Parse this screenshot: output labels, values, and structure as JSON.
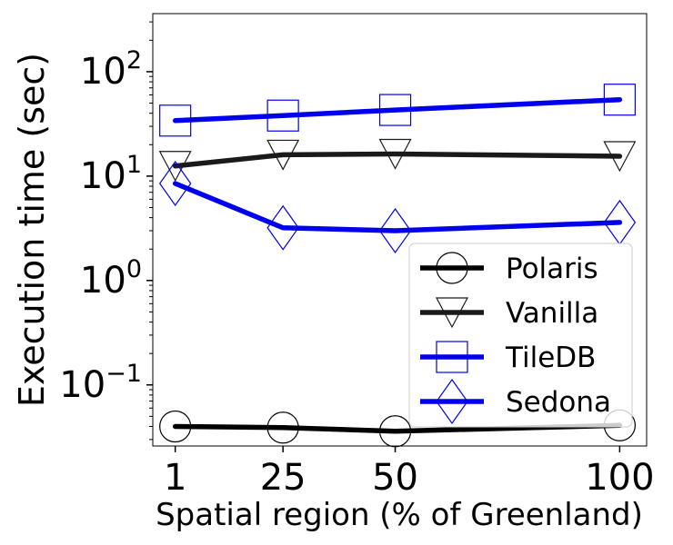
{
  "chart_data": {
    "type": "line",
    "xlabel": "Spatial region (% of Greenland)",
    "ylabel": "Execution time (sec)",
    "x": [
      1,
      25,
      50,
      100
    ],
    "x_tick_labels": [
      "1",
      "25",
      "50",
      "100"
    ],
    "y_scale": "log",
    "y_tick_labels": [
      {
        "value": 0.1,
        "base": "10",
        "exp": "−1"
      },
      {
        "value": 1,
        "base": "10",
        "exp": "0"
      },
      {
        "value": 10,
        "base": "10",
        "exp": "1"
      },
      {
        "value": 100,
        "base": "10",
        "exp": "2"
      }
    ],
    "xlim": [
      -4,
      106
    ],
    "ylim": [
      0.026,
      360
    ],
    "grid": false,
    "legend_position": "lower right",
    "series": [
      {
        "name": "Polaris",
        "values": [
          0.04,
          0.039,
          0.036,
          0.041
        ],
        "color": "#000000",
        "marker": "circle"
      },
      {
        "name": "Vanilla",
        "values": [
          12.5,
          16.0,
          16.3,
          15.5
        ],
        "color": "#1a1a1a",
        "marker": "triangle-down"
      },
      {
        "name": "TileDB",
        "values": [
          34,
          38,
          43,
          54
        ],
        "color": "#0000ee",
        "marker": "square"
      },
      {
        "name": "Sedona",
        "values": [
          8.5,
          3.2,
          3.0,
          3.6
        ],
        "color": "#0000ee",
        "marker": "diamond"
      }
    ]
  }
}
